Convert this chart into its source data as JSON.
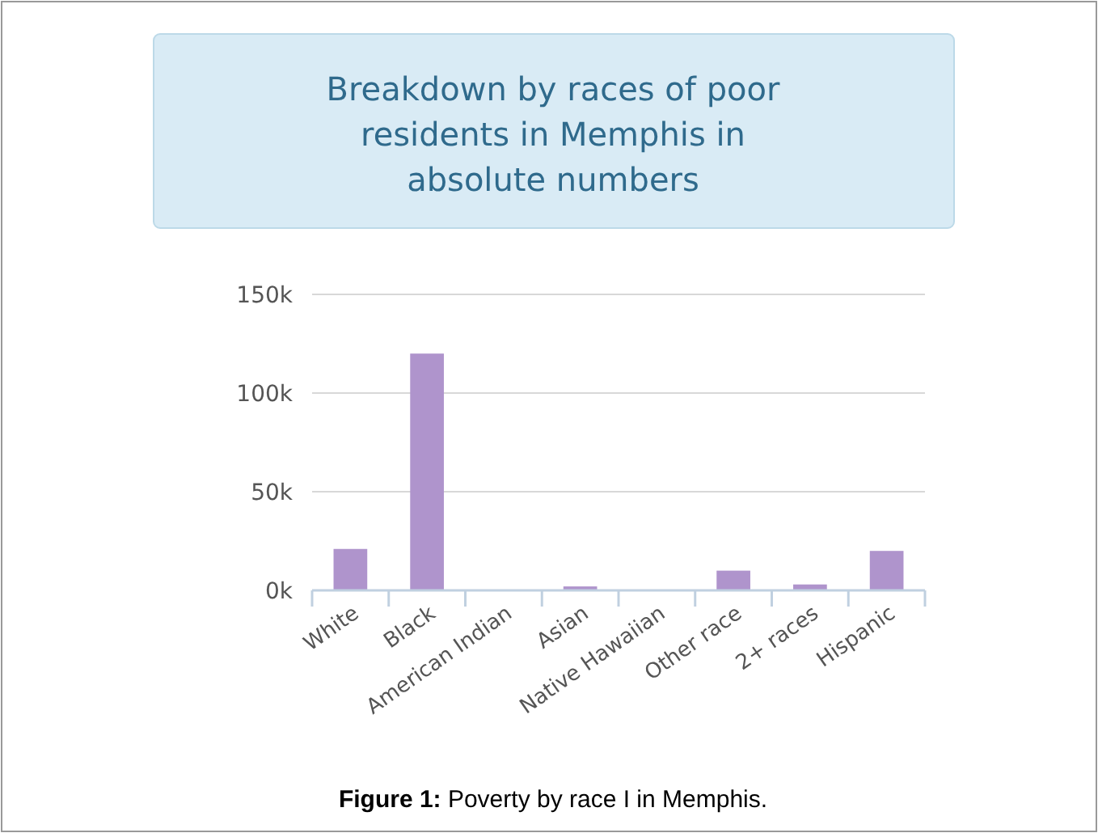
{
  "chart_data": {
    "type": "bar",
    "title": "Breakdown by races of poor residents in Memphis in absolute numbers",
    "categories": [
      "White",
      "Black",
      "American Indian",
      "Asian",
      "Native Hawaiian",
      "Other race",
      "2+ races",
      "Hispanic"
    ],
    "values": [
      21000,
      120000,
      0,
      2000,
      0,
      10000,
      3000,
      20000
    ],
    "color": "#af94cc",
    "ylim": [
      0,
      150000
    ],
    "yticks": [
      {
        "value": 0,
        "label": "0k"
      },
      {
        "value": 50000,
        "label": "50k"
      },
      {
        "value": 100000,
        "label": "100k"
      },
      {
        "value": 150000,
        "label": "150k"
      }
    ],
    "grid": "y",
    "annotations": [
      "Figure 1: Poverty by race I in Memphis."
    ]
  }
}
